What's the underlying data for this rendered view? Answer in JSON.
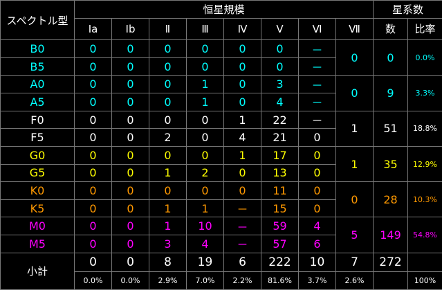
{
  "header": {
    "spectral_type": "スペクトル型",
    "luminosity_class": "恒星規模",
    "system_count": "星系数",
    "classes": [
      "Ⅰa",
      "Ⅰb",
      "Ⅱ",
      "Ⅲ",
      "Ⅳ",
      "Ⅴ",
      "Ⅵ",
      "Ⅶ"
    ],
    "count_label": "数",
    "ratio_label": "比率"
  },
  "rows": [
    {
      "type": "B0",
      "values": [
        "0",
        "0",
        "0",
        "0",
        "0",
        "0",
        "－"
      ],
      "color": "#00ffff"
    },
    {
      "type": "B5",
      "values": [
        "0",
        "0",
        "0",
        "0",
        "0",
        "0",
        "－"
      ],
      "color": "#00ffff"
    },
    {
      "type": "A0",
      "values": [
        "0",
        "0",
        "0",
        "1",
        "0",
        "3",
        "－"
      ],
      "color": "#00ffff"
    },
    {
      "type": "A5",
      "values": [
        "0",
        "0",
        "0",
        "1",
        "0",
        "4",
        "－"
      ],
      "color": "#00ffff"
    },
    {
      "type": "F0",
      "values": [
        "0",
        "0",
        "0",
        "0",
        "1",
        "22",
        "－"
      ],
      "color": "#ffffff"
    },
    {
      "type": "F5",
      "values": [
        "0",
        "0",
        "2",
        "0",
        "4",
        "21",
        "0"
      ],
      "color": "#ffffff"
    },
    {
      "type": "G0",
      "values": [
        "0",
        "0",
        "0",
        "0",
        "1",
        "17",
        "0"
      ],
      "color": "#ffff00"
    },
    {
      "type": "G5",
      "values": [
        "0",
        "0",
        "1",
        "2",
        "0",
        "13",
        "0"
      ],
      "color": "#ffff00"
    },
    {
      "type": "K0",
      "values": [
        "0",
        "0",
        "0",
        "0",
        "0",
        "11",
        "0"
      ],
      "color": "#ff9900"
    },
    {
      "type": "K5",
      "values": [
        "0",
        "0",
        "1",
        "1",
        "－",
        "15",
        "0"
      ],
      "color": "#ff9900"
    },
    {
      "type": "M0",
      "values": [
        "0",
        "0",
        "1",
        "10",
        "－",
        "59",
        "4"
      ],
      "color": "#ff00ff"
    },
    {
      "type": "M5",
      "values": [
        "0",
        "0",
        "3",
        "4",
        "－",
        "57",
        "6"
      ],
      "color": "#ff00ff"
    }
  ],
  "groups": [
    {
      "vii": "0",
      "count": "0",
      "ratio": "0.0%",
      "color": "#00ffff"
    },
    {
      "vii": "0",
      "count": "9",
      "ratio": "3.3%",
      "color": "#00ffff"
    },
    {
      "vii": "1",
      "count": "51",
      "ratio": "18.8%",
      "color": "#ffffff"
    },
    {
      "vii": "1",
      "count": "35",
      "ratio": "12.9%",
      "color": "#ffff00"
    },
    {
      "vii": "0",
      "count": "28",
      "ratio": "10.3%",
      "color": "#ff9900"
    },
    {
      "vii": "5",
      "count": "149",
      "ratio": "54.8%",
      "color": "#ff00ff"
    }
  ],
  "subtotal": {
    "label": "小計",
    "values": [
      "0",
      "0",
      "8",
      "19",
      "6",
      "222",
      "10",
      "7",
      "272"
    ],
    "ratios": [
      "0.0%",
      "0.0%",
      "2.9%",
      "7.0%",
      "2.2%",
      "81.6%",
      "3.7%",
      "2.6%",
      "100%"
    ]
  }
}
